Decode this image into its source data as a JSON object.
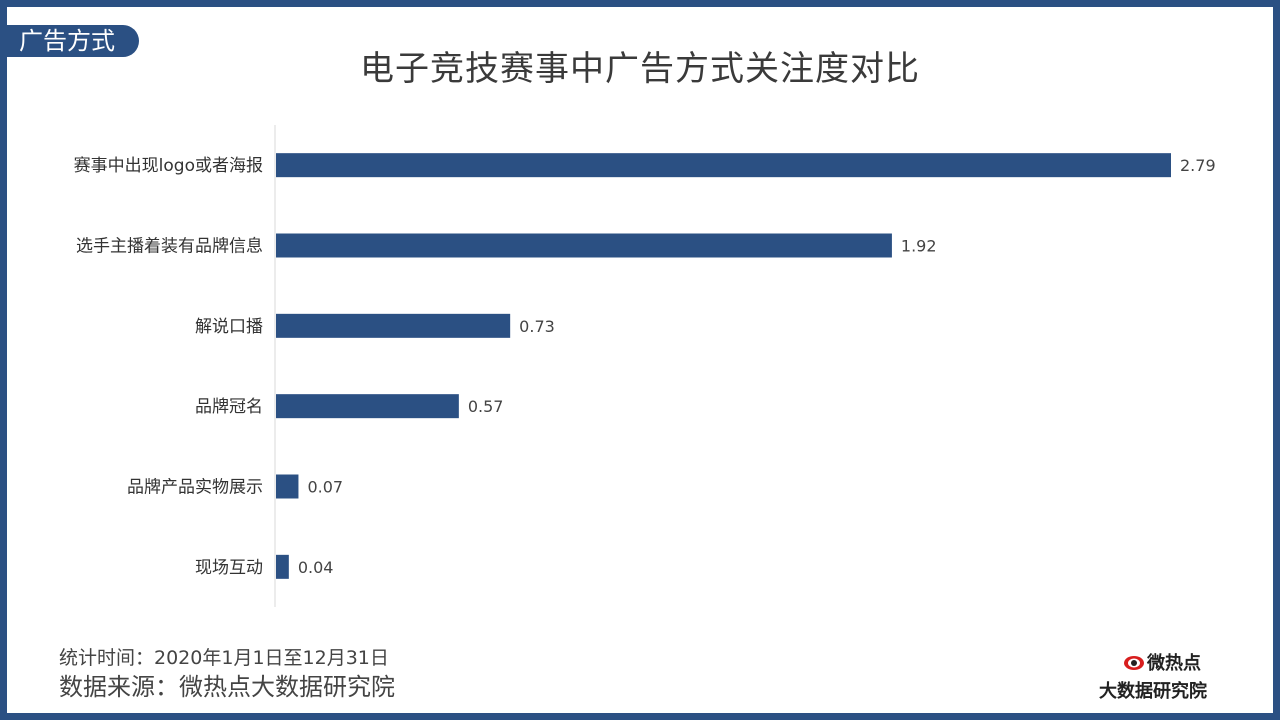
{
  "section_tag": "广告方式",
  "notes": {
    "time": "统计时间：2020年1月1日至12月31日",
    "source": "数据来源：微热点大数据研究院"
  },
  "logo": {
    "line1": "微热点",
    "line2": "大数据研究院"
  },
  "colors": {
    "bar": "#2b5083",
    "frame": "#2b5083",
    "axis": "#d9d9d9",
    "label": "#333333"
  },
  "chart_data": {
    "type": "bar",
    "orientation": "horizontal",
    "title": "电子竞技赛事中广告方式关注度对比",
    "categories": [
      "赛事中出现logo或者海报",
      "选手主播着装有品牌信息",
      "解说口播",
      "品牌冠名",
      "品牌产品实物展示",
      "现场互动"
    ],
    "values": [
      2.79,
      1.92,
      0.73,
      0.57,
      0.07,
      0.04
    ],
    "data_labels": [
      "2.79",
      "1.92",
      "0.73",
      "0.57",
      "0.07",
      "0.04"
    ],
    "xlim": [
      0,
      2.79
    ],
    "grid": false,
    "legend": "none"
  }
}
